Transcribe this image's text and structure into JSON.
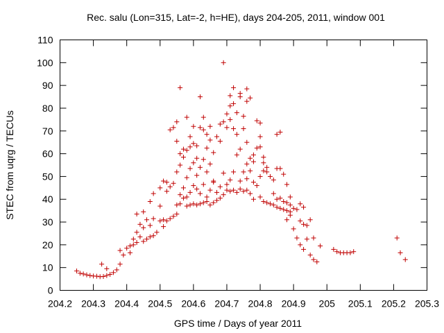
{
  "chart_data": {
    "type": "scatter",
    "title": "Rec. salu (Lon=315, Lat=-2, h=HE), days 204-205, 2011, window 001",
    "xlabel": "GPS time / Days of year 2011",
    "ylabel": "STEC from uqrg / TECUs",
    "xlim": [
      204.2,
      205.3
    ],
    "ylim": [
      0,
      110
    ],
    "x_ticks": [
      204.2,
      204.3,
      204.4,
      204.5,
      204.6,
      204.7,
      204.8,
      204.9,
      205,
      205.1,
      205.2,
      205.3
    ],
    "x_tick_labels": [
      "204.2",
      "204.3",
      "204.4",
      "204.5",
      "204.6",
      "204.7",
      "204.8",
      "204.9",
      "205",
      "205.1",
      "205.2",
      "205.3"
    ],
    "y_ticks": [
      0,
      10,
      20,
      30,
      40,
      50,
      60,
      70,
      80,
      90,
      100,
      110
    ],
    "y_tick_labels": [
      "0",
      "10",
      "20",
      "30",
      "40",
      "50",
      "60",
      "70",
      "80",
      "90",
      "100",
      "110"
    ],
    "grid": false,
    "legend": "none",
    "marker": "plus",
    "color": "#c00000",
    "points": [
      [
        204.25,
        8.5
      ],
      [
        204.26,
        7.5
      ],
      [
        204.27,
        7.2
      ],
      [
        204.28,
        6.8
      ],
      [
        204.29,
        6.5
      ],
      [
        204.3,
        6.3
      ],
      [
        204.31,
        6.2
      ],
      [
        204.32,
        6.0
      ],
      [
        204.33,
        6.1
      ],
      [
        204.34,
        6.5
      ],
      [
        204.35,
        7.0
      ],
      [
        204.36,
        7.8
      ],
      [
        204.325,
        11.5
      ],
      [
        204.34,
        9.5
      ],
      [
        204.37,
        9.0
      ],
      [
        204.38,
        11.5
      ],
      [
        204.38,
        17.5
      ],
      [
        204.39,
        15.5
      ],
      [
        204.4,
        18.5
      ],
      [
        204.41,
        19.5
      ],
      [
        204.41,
        16.5
      ],
      [
        204.42,
        20.0
      ],
      [
        204.43,
        21.0
      ],
      [
        204.42,
        22.5
      ],
      [
        204.43,
        25.5
      ],
      [
        204.44,
        23.5
      ],
      [
        204.44,
        29.0
      ],
      [
        204.45,
        21.5
      ],
      [
        204.45,
        27.5
      ],
      [
        204.46,
        22.5
      ],
      [
        204.46,
        31.0
      ],
      [
        204.47,
        23.5
      ],
      [
        204.47,
        28.5
      ],
      [
        204.48,
        24.0
      ],
      [
        204.49,
        25.5
      ],
      [
        204.48,
        31.5
      ],
      [
        204.43,
        33.5
      ],
      [
        204.45,
        34.5
      ],
      [
        204.47,
        39.0
      ],
      [
        204.48,
        42.5
      ],
      [
        204.5,
        37.0
      ],
      [
        204.5,
        45.0
      ],
      [
        204.51,
        48.0
      ],
      [
        204.52,
        47.5
      ],
      [
        204.52,
        43.5
      ],
      [
        204.51,
        28.0
      ],
      [
        204.52,
        30.5
      ],
      [
        204.53,
        31.5
      ],
      [
        204.54,
        32.5
      ],
      [
        204.55,
        33.5
      ],
      [
        204.5,
        30.5
      ],
      [
        204.51,
        31.0
      ],
      [
        204.53,
        45.5
      ],
      [
        204.54,
        47.0
      ],
      [
        204.53,
        70.5
      ],
      [
        204.54,
        71.5
      ],
      [
        204.55,
        74.0
      ],
      [
        204.55,
        65.5
      ],
      [
        204.56,
        60.0
      ],
      [
        204.56,
        89.0
      ],
      [
        204.57,
        62.0
      ],
      [
        204.58,
        76.0
      ],
      [
        204.58,
        61.5
      ],
      [
        204.59,
        63.0
      ],
      [
        204.59,
        67.5
      ],
      [
        204.6,
        64.5
      ],
      [
        204.6,
        72.0
      ],
      [
        204.61,
        63.5
      ],
      [
        204.61,
        58.0
      ],
      [
        204.62,
        71.5
      ],
      [
        204.62,
        85.0
      ],
      [
        204.63,
        76.0
      ],
      [
        204.63,
        70.5
      ],
      [
        204.64,
        68.5
      ],
      [
        204.64,
        62.5
      ],
      [
        204.65,
        72.0
      ],
      [
        204.65,
        66.0
      ],
      [
        204.66,
        60.5
      ],
      [
        204.55,
        52.0
      ],
      [
        204.56,
        55.0
      ],
      [
        204.57,
        58.5
      ],
      [
        204.58,
        49.5
      ],
      [
        204.59,
        53.5
      ],
      [
        204.6,
        56.0
      ],
      [
        204.61,
        50.5
      ],
      [
        204.62,
        54.0
      ],
      [
        204.63,
        57.5
      ],
      [
        204.64,
        52.0
      ],
      [
        204.65,
        55.5
      ],
      [
        204.66,
        48.0
      ],
      [
        204.55,
        37.5
      ],
      [
        204.56,
        38.0
      ],
      [
        204.57,
        40.5
      ],
      [
        204.58,
        37.0
      ],
      [
        204.59,
        37.5
      ],
      [
        204.6,
        38.0
      ],
      [
        204.61,
        37.5
      ],
      [
        204.62,
        38.0
      ],
      [
        204.63,
        38.5
      ],
      [
        204.64,
        39.0
      ],
      [
        204.65,
        37.5
      ],
      [
        204.66,
        38.5
      ],
      [
        204.56,
        42.0
      ],
      [
        204.57,
        45.0
      ],
      [
        204.58,
        41.0
      ],
      [
        204.59,
        43.0
      ],
      [
        204.6,
        46.0
      ],
      [
        204.61,
        44.5
      ],
      [
        204.62,
        42.5
      ],
      [
        204.63,
        46.5
      ],
      [
        204.64,
        41.0
      ],
      [
        204.65,
        44.0
      ],
      [
        204.66,
        47.5
      ],
      [
        204.67,
        43.0
      ],
      [
        204.67,
        39.5
      ],
      [
        204.68,
        40.5
      ],
      [
        204.68,
        45.5
      ],
      [
        204.69,
        42.0
      ],
      [
        204.69,
        51.5
      ],
      [
        204.67,
        67.5
      ],
      [
        204.68,
        73.0
      ],
      [
        204.68,
        65.5
      ],
      [
        204.69,
        74.0
      ],
      [
        204.69,
        100.0
      ],
      [
        204.7,
        77.5
      ],
      [
        204.7,
        71.5
      ],
      [
        204.7,
        46.5
      ],
      [
        204.71,
        81.0
      ],
      [
        204.71,
        75.0
      ],
      [
        204.71,
        85.5
      ],
      [
        204.72,
        82.0
      ],
      [
        204.72,
        71.0
      ],
      [
        204.72,
        89.0
      ],
      [
        204.73,
        68.5
      ],
      [
        204.73,
        78.0
      ],
      [
        204.74,
        86.5
      ],
      [
        204.74,
        85.0
      ],
      [
        204.75,
        76.5
      ],
      [
        204.76,
        88.5
      ],
      [
        204.76,
        83.0
      ],
      [
        204.77,
        84.5
      ],
      [
        204.75,
        71.0
      ],
      [
        204.76,
        65.0
      ],
      [
        204.74,
        62.0
      ],
      [
        204.73,
        59.5
      ],
      [
        204.72,
        52.0
      ],
      [
        204.71,
        48.5
      ],
      [
        204.7,
        44.0
      ],
      [
        204.71,
        43.5
      ],
      [
        204.72,
        44.0
      ],
      [
        204.73,
        43.0
      ],
      [
        204.74,
        44.5
      ],
      [
        204.75,
        43.5
      ],
      [
        204.76,
        44.0
      ],
      [
        204.77,
        42.5
      ],
      [
        204.78,
        40.0
      ],
      [
        204.74,
        48.0
      ],
      [
        204.75,
        52.0
      ],
      [
        204.76,
        55.5
      ],
      [
        204.77,
        58.0
      ],
      [
        204.78,
        56.5
      ],
      [
        204.77,
        52.5
      ],
      [
        204.76,
        49.0
      ],
      [
        204.78,
        47.5
      ],
      [
        204.79,
        46.0
      ],
      [
        204.8,
        50.0
      ],
      [
        204.81,
        52.5
      ],
      [
        204.82,
        54.0
      ],
      [
        204.79,
        74.5
      ],
      [
        204.8,
        73.5
      ],
      [
        204.8,
        67.5
      ],
      [
        204.8,
        63.0
      ],
      [
        204.81,
        58.5
      ],
      [
        204.81,
        56.0
      ],
      [
        204.79,
        62.5
      ],
      [
        204.78,
        59.5
      ],
      [
        204.82,
        52.0
      ],
      [
        204.83,
        50.0
      ],
      [
        204.84,
        48.5
      ],
      [
        204.85,
        53.5
      ],
      [
        204.85,
        68.5
      ],
      [
        204.86,
        69.5
      ],
      [
        204.86,
        53.5
      ],
      [
        204.87,
        51.0
      ],
      [
        204.88,
        46.5
      ],
      [
        204.89,
        41.0
      ],
      [
        204.8,
        41.0
      ],
      [
        204.81,
        39.0
      ],
      [
        204.82,
        38.5
      ],
      [
        204.83,
        38.0
      ],
      [
        204.84,
        37.5
      ],
      [
        204.85,
        36.5
      ],
      [
        204.86,
        36.0
      ],
      [
        204.87,
        35.5
      ],
      [
        204.88,
        35.0
      ],
      [
        204.89,
        34.5
      ],
      [
        204.84,
        42.5
      ],
      [
        204.85,
        40.0
      ],
      [
        204.86,
        40.5
      ],
      [
        204.87,
        39.0
      ],
      [
        204.88,
        38.5
      ],
      [
        204.89,
        37.5
      ],
      [
        204.9,
        36.0
      ],
      [
        204.91,
        35.5
      ],
      [
        204.92,
        38.0
      ],
      [
        204.93,
        36.5
      ],
      [
        204.88,
        31.0
      ],
      [
        204.89,
        33.0
      ],
      [
        204.9,
        27.0
      ],
      [
        204.91,
        23.0
      ],
      [
        204.92,
        30.5
      ],
      [
        204.93,
        29.0
      ],
      [
        204.92,
        20.0
      ],
      [
        204.93,
        18.0
      ],
      [
        204.94,
        28.5
      ],
      [
        204.95,
        31.0
      ],
      [
        204.94,
        22.5
      ],
      [
        204.95,
        15.5
      ],
      [
        204.96,
        23.0
      ],
      [
        204.96,
        13.5
      ],
      [
        204.97,
        12.5
      ],
      [
        204.98,
        19.5
      ],
      [
        205.02,
        18.0
      ],
      [
        205.03,
        17.0
      ],
      [
        205.04,
        16.5
      ],
      [
        205.05,
        16.5
      ],
      [
        205.06,
        16.5
      ],
      [
        205.07,
        16.5
      ],
      [
        205.08,
        17.0
      ],
      [
        205.21,
        23.0
      ],
      [
        205.22,
        16.5
      ],
      [
        205.235,
        13.5
      ]
    ]
  }
}
